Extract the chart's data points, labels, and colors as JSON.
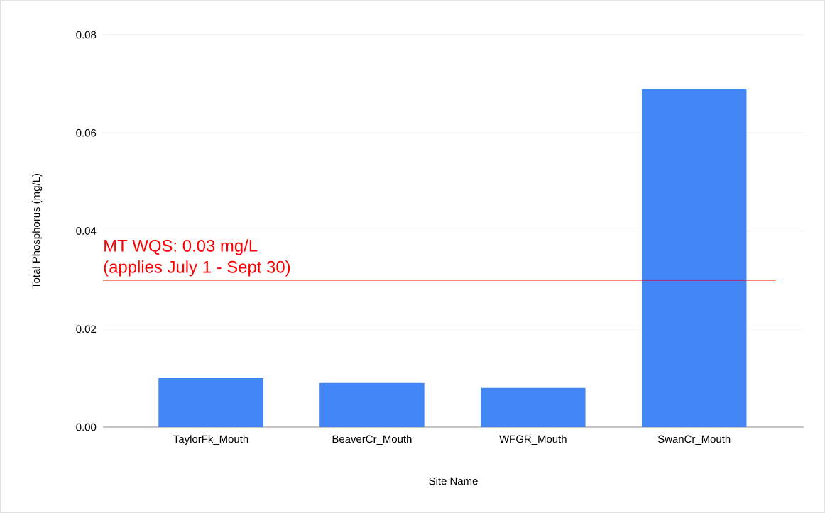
{
  "chart_data": {
    "type": "bar",
    "categories": [
      "TaylorFk_Mouth",
      "BeaverCr_Mouth",
      "WFGR_Mouth",
      "SwanCr_Mouth"
    ],
    "values": [
      0.01,
      0.009,
      0.008,
      0.069
    ],
    "color": "#4285f4",
    "xlabel": "Site Name",
    "ylabel": "Total Phosphorus (mg/L)",
    "ylim": [
      0,
      0.08
    ],
    "yticks": [
      {
        "value": 0,
        "label": "0.00"
      },
      {
        "value": 0.02,
        "label": "0.02"
      },
      {
        "value": 0.04,
        "label": "0.04"
      },
      {
        "value": 0.06,
        "label": "0.06"
      },
      {
        "value": 0.08,
        "label": "0.08"
      }
    ],
    "grid": "y",
    "ref_lines": [
      {
        "axis": "y",
        "value": 0.03,
        "label": "MT WQS: 0.03 mg/L",
        "color": "#ff0000"
      }
    ],
    "annotations": [
      "(applies July 1 - Sept 30)"
    ]
  }
}
